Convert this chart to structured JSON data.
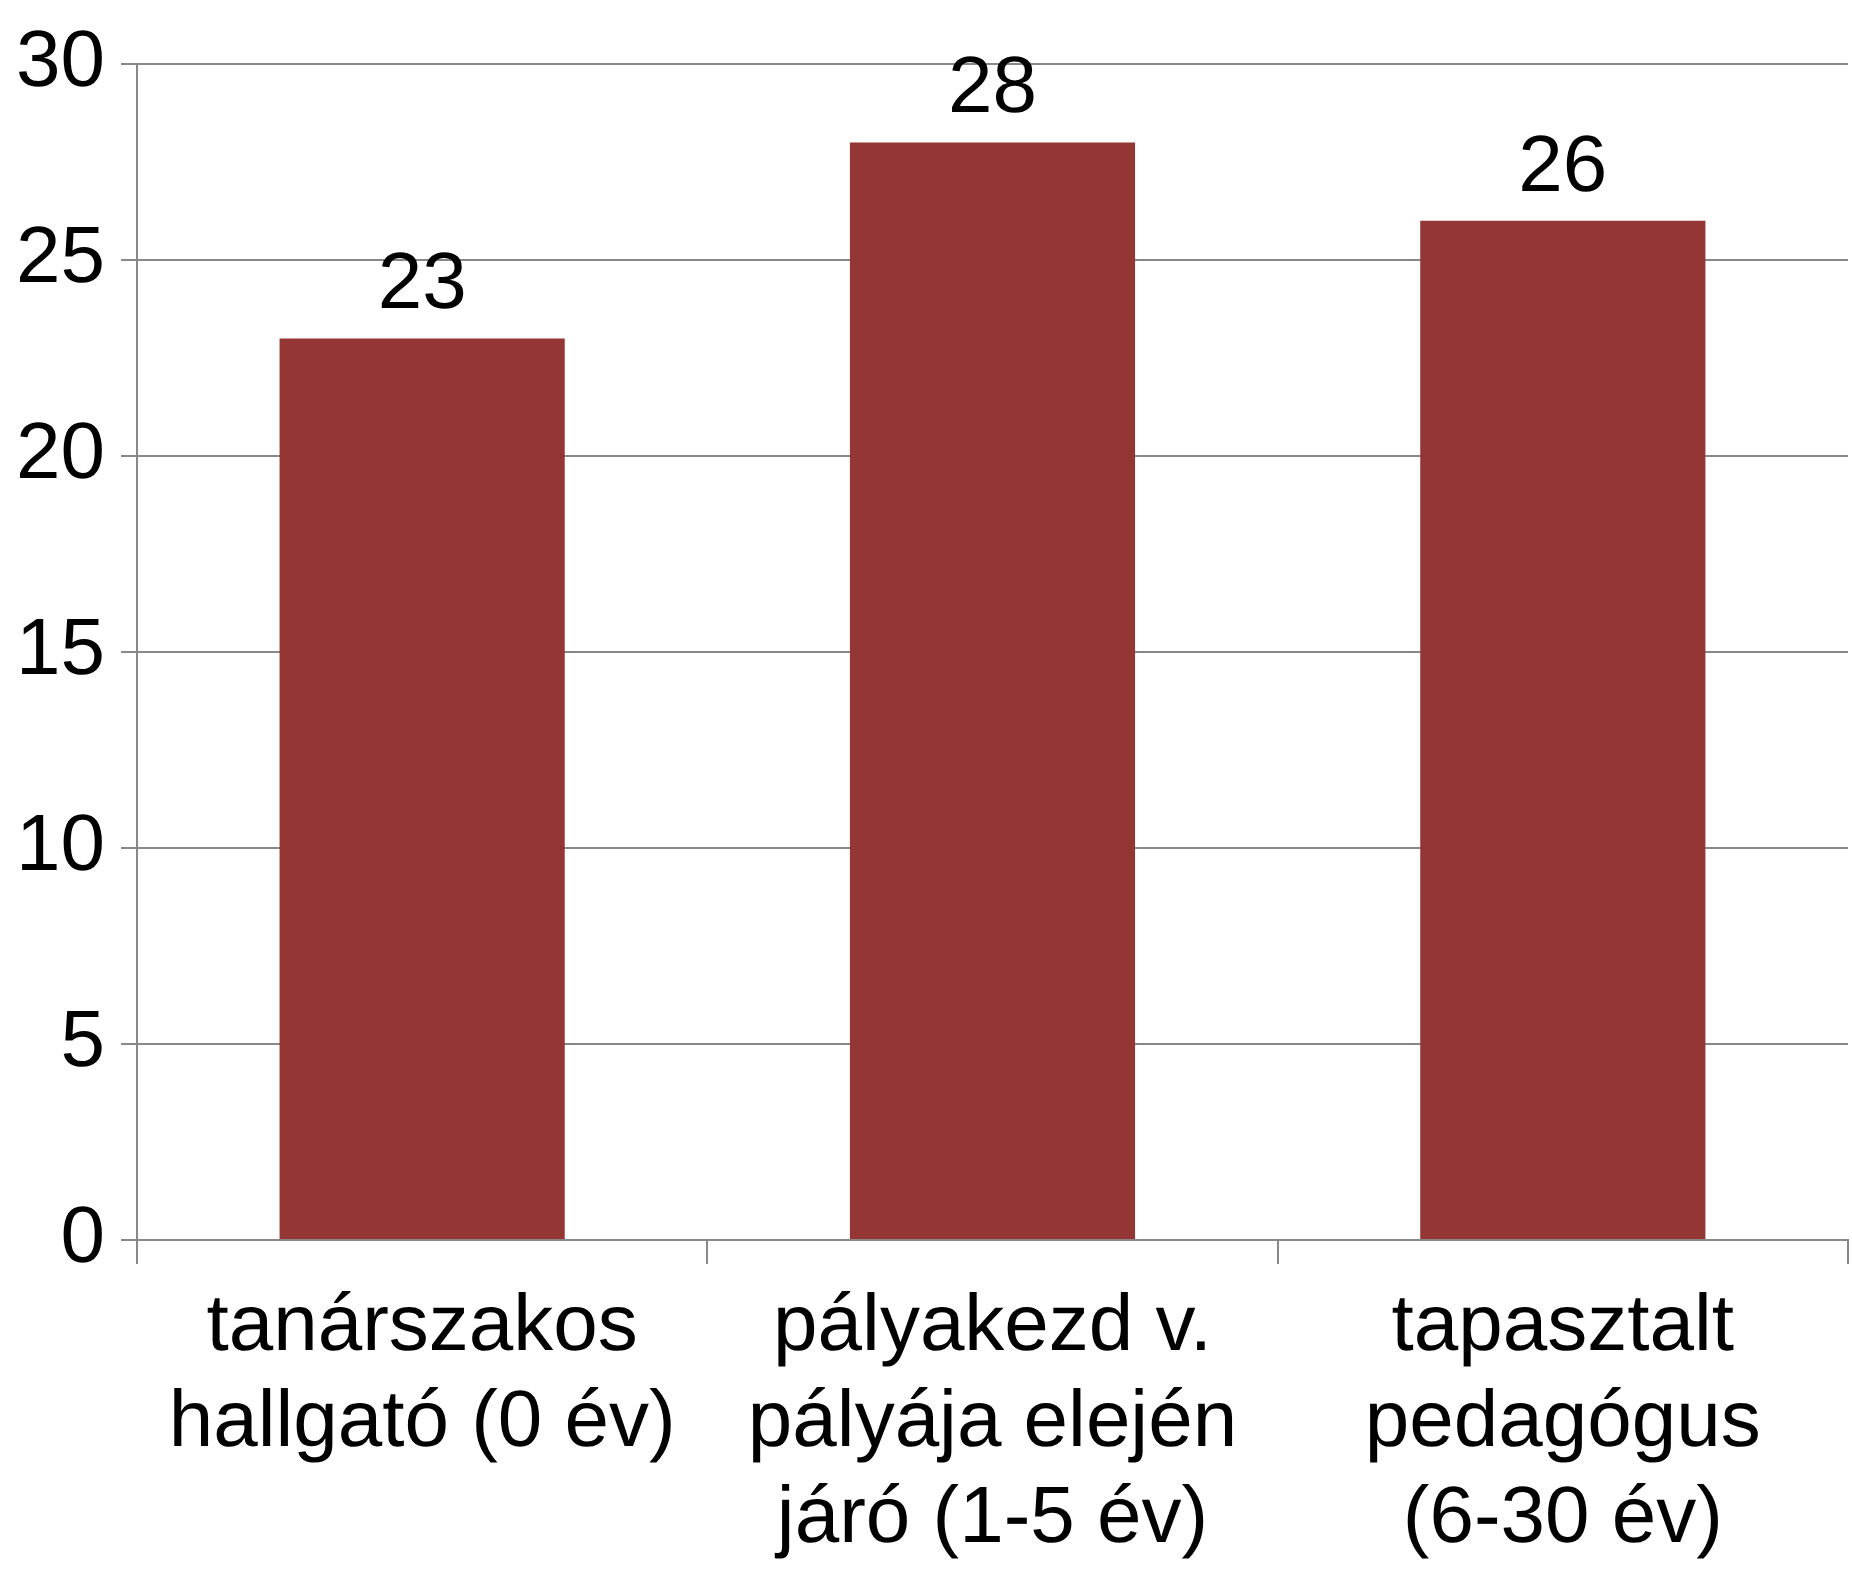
{
  "chart_data": {
    "type": "bar",
    "categories": [
      "tanárszakos hallgató (0 év)",
      "pályakezd v. pályája elején járó (1-5 év)",
      "tapasztalt pedagógus (6-30 év)"
    ],
    "values": [
      23,
      28,
      26
    ],
    "color": "#943634",
    "ylim": [
      0,
      30
    ],
    "yticks": [
      0,
      5,
      10,
      15,
      20,
      25,
      30
    ],
    "grid": "y",
    "data_labels": true,
    "legend": false
  }
}
